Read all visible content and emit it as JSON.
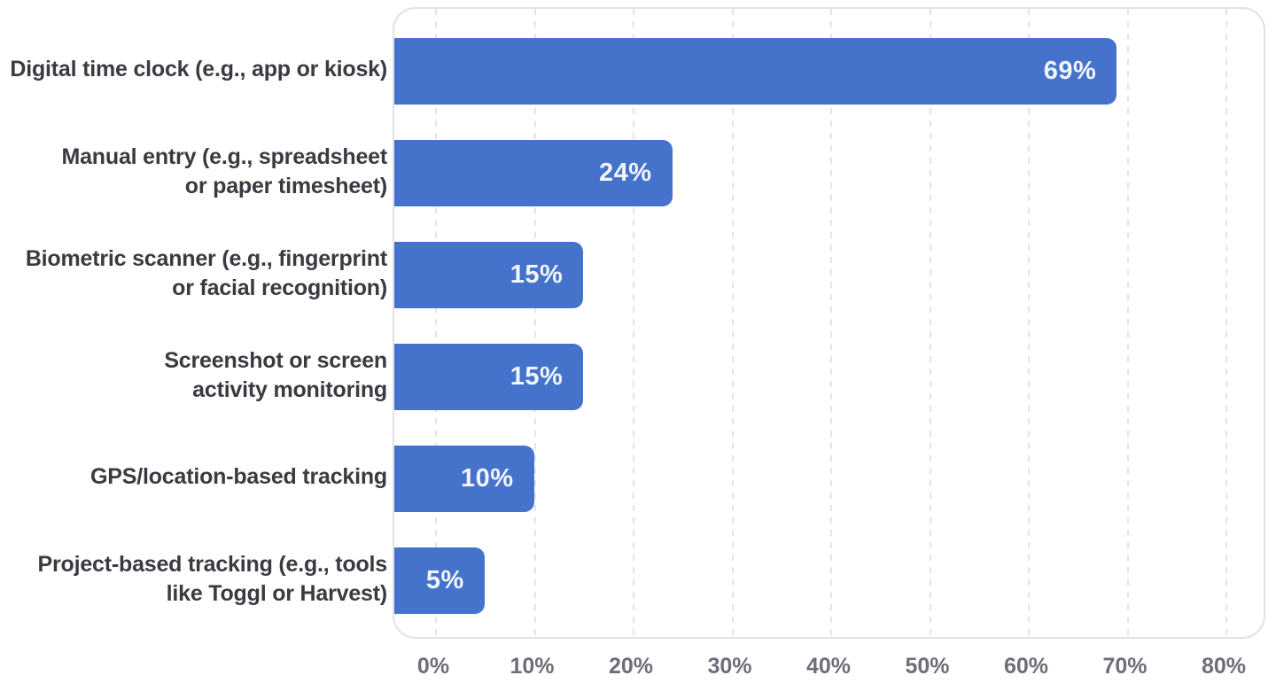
{
  "chart_data": {
    "type": "bar",
    "orientation": "horizontal",
    "title": "",
    "categories": [
      "Digital time clock (e.g., app or kiosk)",
      "Manual entry (e.g., spreadsheet or paper timesheet)",
      "Biometric scanner (e.g., fingerprint or facial recognition)",
      "Screenshot or screen activity monitoring",
      "GPS/location-based tracking",
      "Project-based tracking (e.g., tools like Toggl or Harvest)"
    ],
    "categories_lines": [
      [
        "Digital time clock (e.g., app or kiosk)",
        ""
      ],
      [
        "Manual entry (e.g., spreadsheet",
        "or paper timesheet)"
      ],
      [
        "Biometric scanner (e.g., fingerprint",
        "or facial recognition)"
      ],
      [
        "Screenshot or screen",
        "activity monitoring"
      ],
      [
        "GPS/location-based tracking",
        ""
      ],
      [
        "Project-based tracking (e.g., tools",
        "like Toggl or Harvest)"
      ]
    ],
    "values": [
      69,
      24,
      15,
      15,
      10,
      5
    ],
    "value_labels": [
      "69%",
      "24%",
      "15%",
      "15%",
      "10%",
      "5%"
    ],
    "x_tick_labels": [
      "0%",
      "10%",
      "20%",
      "30%",
      "40%",
      "50%",
      "60%",
      "70%",
      "80%"
    ],
    "xlim": [
      0,
      80
    ],
    "grid": "vertical-dashed",
    "legend": "none",
    "colors": {
      "bar": "#4573cb",
      "value_label": "#f2f6fc",
      "category_label": "#3a3a41",
      "tick_label": "#6e6e78",
      "gridline": "#e3e3e9",
      "plot_border": "#e1e1e6",
      "background": "#ffffff"
    }
  }
}
